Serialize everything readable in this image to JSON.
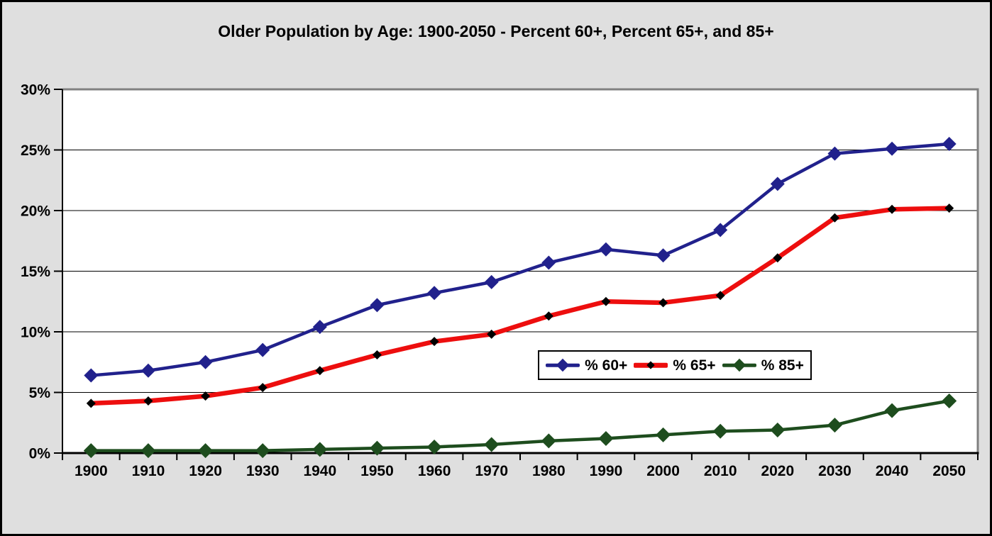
{
  "title": "Older Population by Age: 1900-2050 - Percent 60+, Percent 65+, and 85+",
  "palette": {
    "background": "#DFDFDF",
    "plot_background": "#FFFFFF",
    "outer_border": "#000000",
    "plot_top_right_border": "#808080",
    "axis_color": "#000000",
    "gridline_color": "#000000",
    "text_color": "#000000",
    "legend_background": "#FFFFFF",
    "legend_border": "#000000"
  },
  "chart_data": {
    "type": "line",
    "title": "Older Population by Age: 1900-2050 - Percent 60+, Percent 65+, and 85+",
    "categories": [
      "1900",
      "1910",
      "1920",
      "1930",
      "1940",
      "1950",
      "1960",
      "1970",
      "1980",
      "1990",
      "2000",
      "2010",
      "2020",
      "2030",
      "2040",
      "2050"
    ],
    "xlabel": "",
    "ylabel": "",
    "ylim": [
      0,
      30
    ],
    "yticks": [
      0,
      5,
      10,
      15,
      20,
      25,
      30
    ],
    "ytick_labels": [
      "0%",
      "5%",
      "10%",
      "15%",
      "20%",
      "25%",
      "30%"
    ],
    "grid": true,
    "legend_position": "inside-bottom-right",
    "series": [
      {
        "name": "% 60+",
        "color": "#21218C",
        "marker": "diamond",
        "marker_color": "#21218C",
        "marker_size": 10,
        "line_width": 4.5,
        "values": [
          6.4,
          6.8,
          7.5,
          8.5,
          10.4,
          12.2,
          13.2,
          14.1,
          15.7,
          16.8,
          16.3,
          18.4,
          22.2,
          24.7,
          25.1,
          25.5
        ]
      },
      {
        "name": "% 65+",
        "color": "#ED0E0E",
        "marker": "diamond",
        "marker_color": "#000000",
        "marker_size": 6.5,
        "line_width": 6.5,
        "values": [
          4.1,
          4.3,
          4.7,
          5.4,
          6.8,
          8.1,
          9.2,
          9.8,
          11.3,
          12.5,
          12.4,
          13.0,
          16.1,
          19.4,
          20.1,
          20.2
        ]
      },
      {
        "name": "% 85+",
        "color": "#1E4D1E",
        "marker": "diamond",
        "marker_color": "#1E4D1E",
        "marker_size": 10.5,
        "line_width": 4.5,
        "values": [
          0.2,
          0.2,
          0.2,
          0.2,
          0.3,
          0.4,
          0.5,
          0.7,
          1.0,
          1.2,
          1.5,
          1.8,
          1.9,
          2.3,
          3.5,
          4.3
        ]
      }
    ]
  }
}
